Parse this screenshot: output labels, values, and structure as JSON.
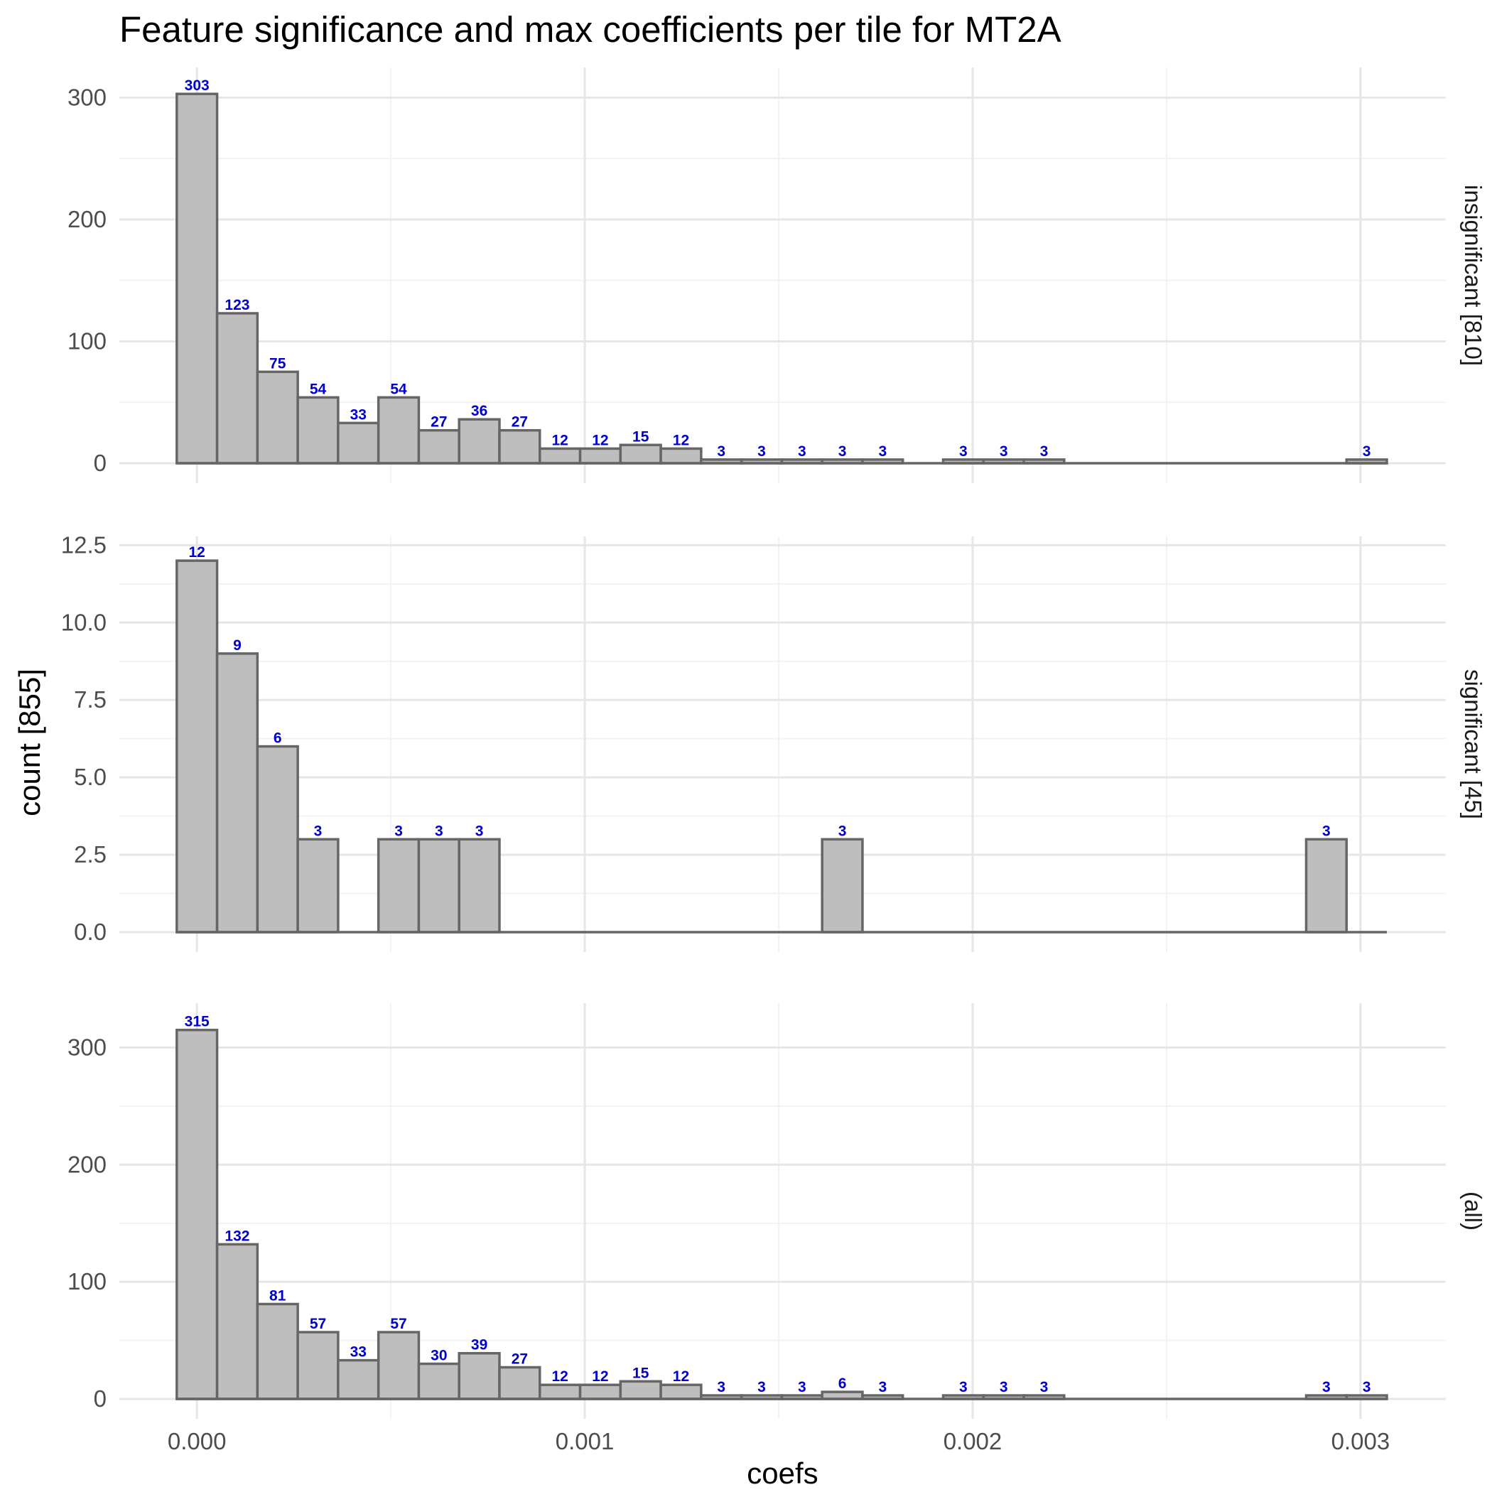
{
  "chart_data": {
    "type": "bar",
    "title": "Feature significance and max coefficients per tile for MT2A",
    "xlabel": "coefs",
    "ylabel": "count [855]",
    "x_ticks": [
      "0.000",
      "0.001",
      "0.002",
      "0.003"
    ],
    "x_tick_values": [
      0,
      0.001,
      0.002,
      0.003
    ],
    "xlim": [
      -0.0002,
      0.00322
    ],
    "bin_width": 0.000104,
    "bin_start": -5.2e-05,
    "bin_count": 30,
    "grid": true,
    "panels": [
      {
        "strip_label": "insignificant [810]",
        "ylim": [
          0,
          320
        ],
        "y_ticks": [
          "0",
          "100",
          "200",
          "300"
        ],
        "y_tick_values": [
          0,
          100,
          200,
          300
        ],
        "counts": [
          303,
          123,
          75,
          54,
          33,
          54,
          27,
          36,
          27,
          12,
          12,
          15,
          12,
          3,
          3,
          3,
          3,
          3,
          0,
          3,
          3,
          3,
          0,
          0,
          0,
          0,
          0,
          0,
          0,
          3
        ]
      },
      {
        "strip_label": "significant [45]",
        "ylim": [
          0,
          12.6
        ],
        "y_ticks": [
          "0.0",
          "2.5",
          "5.0",
          "7.5",
          "10.0",
          "12.5"
        ],
        "y_tick_values": [
          0,
          2.5,
          5,
          7.5,
          10,
          12.5
        ],
        "counts": [
          12,
          9,
          6,
          3,
          0,
          3,
          3,
          3,
          0,
          0,
          0,
          0,
          0,
          0,
          0,
          0,
          3,
          0,
          0,
          0,
          0,
          0,
          0,
          0,
          0,
          0,
          0,
          0,
          3,
          0
        ]
      },
      {
        "strip_label": "(all)",
        "ylim": [
          0,
          333
        ],
        "y_ticks": [
          "0",
          "100",
          "200",
          "300"
        ],
        "y_tick_values": [
          0,
          100,
          200,
          300
        ],
        "counts": [
          315,
          132,
          81,
          57,
          33,
          57,
          30,
          39,
          27,
          12,
          12,
          15,
          12,
          3,
          3,
          3,
          6,
          3,
          0,
          3,
          3,
          3,
          0,
          0,
          0,
          0,
          0,
          0,
          3,
          3
        ]
      }
    ],
    "colors": {
      "bar_fill": "#bebebe",
      "bar_stroke": "#666666",
      "label": "#0000cc",
      "grid_major": "#e6e6e6",
      "grid_minor": "#f2f2f2",
      "text": "#4d4d4d"
    }
  }
}
